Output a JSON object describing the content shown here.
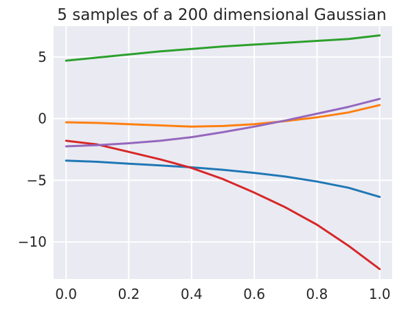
{
  "chart_data": {
    "type": "line",
    "title": "5 samples of a 200 dimensional Gaussian",
    "xlabel": "",
    "ylabel": "",
    "xlim": [
      -0.04,
      1.04
    ],
    "ylim": [
      -13,
      7.5
    ],
    "xticks": [
      0.0,
      0.2,
      0.4,
      0.6,
      0.8,
      1.0
    ],
    "xtick_labels": [
      "0.0",
      "0.2",
      "0.4",
      "0.6",
      "0.8",
      "1.0"
    ],
    "yticks": [
      -10,
      -5,
      0,
      5
    ],
    "ytick_labels": [
      "−10",
      "−5",
      "0",
      "5"
    ],
    "grid": true,
    "background": "#eaeaf2",
    "series": [
      {
        "color": "#1f77b4",
        "x": [
          0.0,
          0.1,
          0.2,
          0.3,
          0.4,
          0.5,
          0.6,
          0.7,
          0.8,
          0.9,
          1.0
        ],
        "y": [
          -3.4,
          -3.5,
          -3.65,
          -3.8,
          -3.95,
          -4.15,
          -4.4,
          -4.7,
          -5.1,
          -5.6,
          -6.35
        ]
      },
      {
        "color": "#ff7f0e",
        "x": [
          0.0,
          0.1,
          0.2,
          0.3,
          0.4,
          0.5,
          0.6,
          0.7,
          0.8,
          0.9,
          1.0
        ],
        "y": [
          -0.3,
          -0.35,
          -0.45,
          -0.55,
          -0.65,
          -0.6,
          -0.45,
          -0.2,
          0.1,
          0.5,
          1.1
        ]
      },
      {
        "color": "#2ca02c",
        "x": [
          0.0,
          0.1,
          0.2,
          0.3,
          0.4,
          0.5,
          0.6,
          0.7,
          0.8,
          0.9,
          1.0
        ],
        "y": [
          4.7,
          4.95,
          5.2,
          5.45,
          5.65,
          5.85,
          6.0,
          6.15,
          6.3,
          6.45,
          6.75
        ]
      },
      {
        "color": "#d62728",
        "x": [
          0.0,
          0.1,
          0.2,
          0.3,
          0.4,
          0.5,
          0.6,
          0.7,
          0.8,
          0.9,
          1.0
        ],
        "y": [
          -1.8,
          -2.1,
          -2.7,
          -3.3,
          -4.0,
          -4.9,
          -6.0,
          -7.2,
          -8.6,
          -10.3,
          -12.2
        ]
      },
      {
        "color": "#9467bd",
        "x": [
          0.0,
          0.1,
          0.2,
          0.3,
          0.4,
          0.5,
          0.6,
          0.7,
          0.8,
          0.9,
          1.0
        ],
        "y": [
          -2.25,
          -2.15,
          -2.0,
          -1.8,
          -1.5,
          -1.1,
          -0.65,
          -0.15,
          0.4,
          0.95,
          1.6
        ]
      }
    ]
  }
}
